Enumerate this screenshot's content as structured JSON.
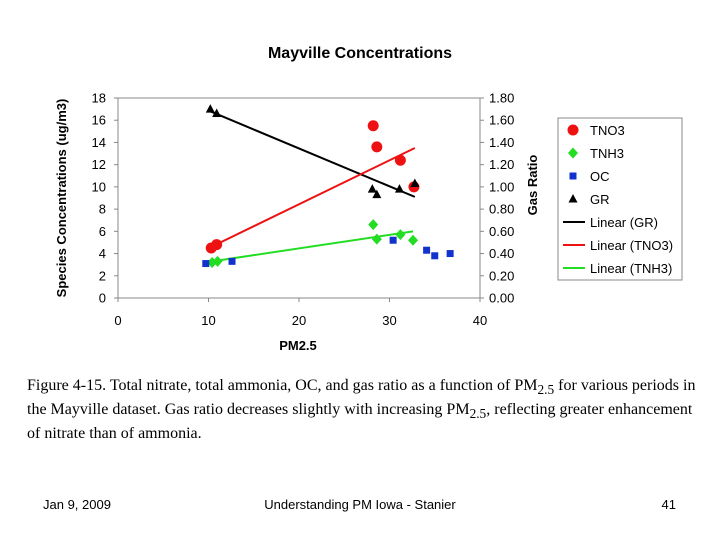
{
  "chart_data": {
    "type": "scatter",
    "title": "Mayville Concentrations",
    "xlabel": "PM2.5",
    "ylabel_left": "Species Concentrations (ug/m3)",
    "ylabel_right": "Gas Ratio",
    "xlim": [
      0,
      40
    ],
    "ylim_left": [
      0,
      18
    ],
    "ylim_right": [
      0.0,
      1.8
    ],
    "x_ticks": [
      "0",
      "10",
      "20",
      "30",
      "40"
    ],
    "y_left_ticks": [
      "0",
      "2",
      "4",
      "6",
      "8",
      "10",
      "12",
      "14",
      "16",
      "18"
    ],
    "y_right_ticks": [
      "0.00",
      "0.20",
      "0.40",
      "0.60",
      "0.80",
      "1.00",
      "1.20",
      "1.40",
      "1.60",
      "1.80"
    ],
    "legend_position": "right",
    "series": [
      {
        "name": "TNO3",
        "marker": "circle",
        "color": "#ee1111",
        "axis": "left",
        "points": [
          [
            10.3,
            4.5
          ],
          [
            10.9,
            4.8
          ],
          [
            28.2,
            15.5
          ],
          [
            28.6,
            13.6
          ],
          [
            31.2,
            12.4
          ],
          [
            32.7,
            10.0
          ]
        ]
      },
      {
        "name": "TNH3",
        "marker": "diamond",
        "color": "#22dd22",
        "axis": "left",
        "points": [
          [
            10.4,
            3.2
          ],
          [
            11.0,
            3.3
          ],
          [
            28.2,
            6.6
          ],
          [
            28.6,
            5.3
          ],
          [
            31.2,
            5.7
          ],
          [
            32.6,
            5.2
          ]
        ]
      },
      {
        "name": "OC",
        "marker": "square",
        "color": "#1133cc",
        "axis": "left",
        "points": [
          [
            9.7,
            3.1
          ],
          [
            12.6,
            3.3
          ],
          [
            30.4,
            5.2
          ],
          [
            34.1,
            4.3
          ],
          [
            35.0,
            3.8
          ],
          [
            36.7,
            4.0
          ]
        ]
      },
      {
        "name": "GR",
        "marker": "triangle",
        "color": "#000000",
        "axis": "right",
        "points": [
          [
            10.2,
            1.7
          ],
          [
            10.9,
            1.66
          ],
          [
            28.1,
            0.98
          ],
          [
            28.6,
            0.93
          ],
          [
            31.1,
            0.98
          ],
          [
            32.8,
            1.03
          ]
        ]
      }
    ],
    "trendlines": [
      {
        "name": "Linear (GR)",
        "color": "#000000",
        "axis": "right",
        "from": [
          10.2,
          1.68
        ],
        "to": [
          32.8,
          0.91
        ]
      },
      {
        "name": "Linear (TNO3)",
        "color": "#ee1111",
        "axis": "left",
        "from": [
          10.3,
          4.6
        ],
        "to": [
          32.8,
          13.5
        ]
      },
      {
        "name": "Linear (TNH3)",
        "color": "#22dd22",
        "axis": "left",
        "from": [
          10.4,
          3.3
        ],
        "to": [
          32.6,
          6.0
        ]
      }
    ]
  },
  "caption": {
    "prefix": "Figure 4-15.  Total nitrate, total ammonia, OC, and gas ratio as a function of PM",
    "sub1": "2.5",
    "middle": " for various periods in the Mayville dataset.  Gas ratio decreases slightly with increasing PM",
    "sub2": "2.5",
    "suffix": ", reflecting greater enhancement of nitrate than of ammonia."
  },
  "footer": {
    "date": "Jan 9, 2009",
    "center": "Understanding PM Iowa - Stanier",
    "page": "41"
  }
}
